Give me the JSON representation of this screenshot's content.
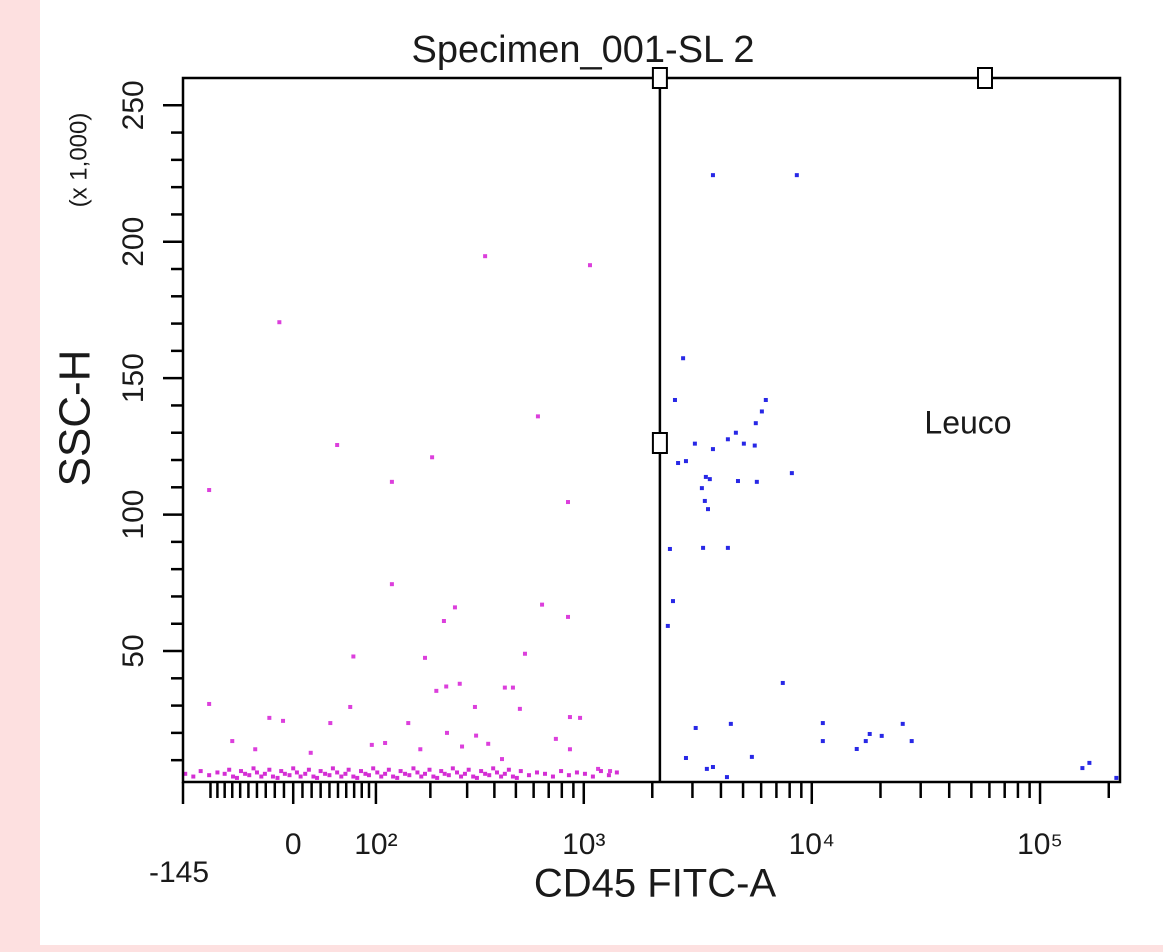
{
  "chart_data": {
    "type": "scatter",
    "title": "Specimen_001-SL 2",
    "xlabel": "CD45 FITC-A",
    "ylabel": "SSC-H",
    "ylabel_unit": "(x 1,000)",
    "xscale": "biexponential",
    "xlim": [
      -145,
      224000
    ],
    "xticks": [
      {
        "value": -145,
        "label": "-145"
      },
      0,
      {
        "value": 100,
        "label": "10²"
      },
      {
        "value": 1000,
        "label": "10³"
      },
      {
        "value": 10000,
        "label": "10⁴"
      },
      {
        "value": 100000,
        "label": "10⁵"
      }
    ],
    "xminorticks": [
      -100,
      -90,
      -80,
      -70,
      -60,
      -50,
      -40,
      -30,
      -20,
      -10,
      10,
      20,
      30,
      40,
      50,
      60,
      70,
      80,
      90,
      200,
      300,
      400,
      500,
      600,
      700,
      800,
      900,
      2000,
      3000,
      4000,
      5000,
      6000,
      7000,
      8000,
      9000,
      20000,
      30000,
      40000,
      50000,
      60000,
      70000,
      80000,
      90000,
      200000
    ],
    "ylim": [
      2,
      260
    ],
    "yticks": [
      50,
      100,
      150,
      200,
      250
    ],
    "yminorticks": [
      10,
      20,
      30,
      40,
      60,
      70,
      80,
      90,
      110,
      120,
      130,
      140,
      160,
      170,
      180,
      190,
      210,
      220,
      230,
      240
    ],
    "gate": {
      "label": "Leuco",
      "x": 2160
    },
    "series": [
      {
        "color": "#dc3fdc",
        "x": [
          -102,
          -15,
          363,
          1065,
          49,
          204,
          125,
          627,
          852,
          125,
          263,
          654,
          852,
          233,
          69,
          188,
          549,
          -102,
          -70,
          -26,
          -11,
          41,
          65,
          94,
          154,
          214,
          239,
          277,
          326,
          375,
          446,
          485,
          521,
          753,
          869,
          963,
          1156,
          1305,
          -42,
          19,
          114,
          178,
          241,
          284,
          330,
          433,
          869
        ],
        "values": [
          109,
          170.5,
          194.7,
          191.4,
          125.5,
          121,
          112,
          136,
          104.6,
          74.5,
          66,
          67,
          62.5,
          61,
          48,
          47.5,
          49,
          30.6,
          17,
          25.5,
          24.4,
          23.6,
          29.5,
          15.6,
          23.6,
          35.4,
          37,
          38,
          29.5,
          16,
          36.6,
          36.6,
          28.8,
          17.8,
          25.8,
          25.5,
          6.8,
          6,
          14,
          12.7,
          16.3,
          14,
          20,
          15,
          19,
          10.4,
          14
        ]
      },
      {
        "color": "#d42ed4",
        "x": [
          -141,
          -127,
          -115,
          -102,
          -90,
          -80,
          -69,
          -59,
          -49,
          -40,
          -31,
          -22,
          -13,
          -4,
          4,
          13,
          22,
          30,
          40,
          49,
          59,
          69,
          79,
          90,
          102,
          114,
          127,
          140,
          156,
          172,
          188,
          207,
          226,
          246,
          269,
          293,
          320,
          348,
          379,
          411,
          446,
          485,
          526,
          572,
          621,
          674,
          731,
          794,
          860,
          933,
          1012,
          1097,
          1190,
          1290,
          1398,
          -74,
          -64,
          -54,
          -44,
          -35,
          -26,
          -17,
          -9,
          0,
          8,
          17,
          26,
          35,
          44,
          54,
          63,
          74,
          85,
          96,
          108,
          120,
          134,
          148,
          164,
          180,
          198,
          216,
          235,
          257,
          281,
          305,
          333,
          363,
          395,
          429,
          465,
          505
        ],
        "values": [
          5,
          4,
          6,
          4.5,
          5.5,
          5,
          4,
          6,
          4.5,
          5.5,
          5,
          4,
          6,
          4.5,
          5.5,
          5,
          4,
          6,
          4.5,
          5.5,
          5,
          4,
          6,
          4.5,
          5.5,
          5,
          4,
          6,
          4.5,
          5.5,
          5,
          4,
          6,
          4.5,
          5.5,
          5,
          4,
          6,
          4.5,
          5.5,
          5,
          4,
          6,
          4.5,
          5.5,
          5,
          4,
          6,
          4.5,
          5.5,
          5,
          4,
          6,
          4.5,
          5.5,
          6.5,
          3.5,
          5,
          7,
          4,
          6.5,
          3.5,
          5,
          7,
          4,
          6.5,
          3.5,
          5,
          7,
          4,
          6.5,
          3.5,
          5,
          7,
          4,
          6.5,
          3.5,
          5,
          7,
          4,
          6.5,
          3.5,
          5,
          7,
          4,
          6.5,
          3.5,
          5,
          7,
          4,
          6.5,
          3.5
        ]
      },
      {
        "color": "#2828e6",
        "x": [
          3690,
          8600,
          2730,
          2515,
          6290,
          6045,
          5685,
          4650,
          4290,
          5040,
          3075,
          3690,
          2810,
          2595,
          5625,
          3435,
          3575,
          3300,
          4750,
          5745,
          8180,
          3400,
          3510,
          2390,
          3340,
          4290,
          2465,
          2340,
          7465,
          3100,
          4420,
          11180,
          11180,
          25030,
          27400,
          17940,
          17240,
          15740,
          20250,
          2810,
          3470,
          3690,
          4250,
          5465,
          153300,
          164500,
          215900
        ],
        "values": [
          224.4,
          224.4,
          157.3,
          142,
          142,
          137.8,
          133.5,
          130,
          127.6,
          126,
          126,
          124,
          119.6,
          118.9,
          125.3,
          113.8,
          113,
          109.7,
          112.3,
          112,
          115.2,
          105,
          102,
          87.4,
          87.8,
          87.8,
          68.3,
          59.2,
          38.3,
          21.8,
          23.3,
          23.6,
          17,
          23.3,
          17,
          19.6,
          17,
          14.1,
          18.9,
          10.8,
          6.8,
          7.5,
          3.8,
          11.2,
          7.1,
          9,
          3.5
        ]
      }
    ]
  }
}
